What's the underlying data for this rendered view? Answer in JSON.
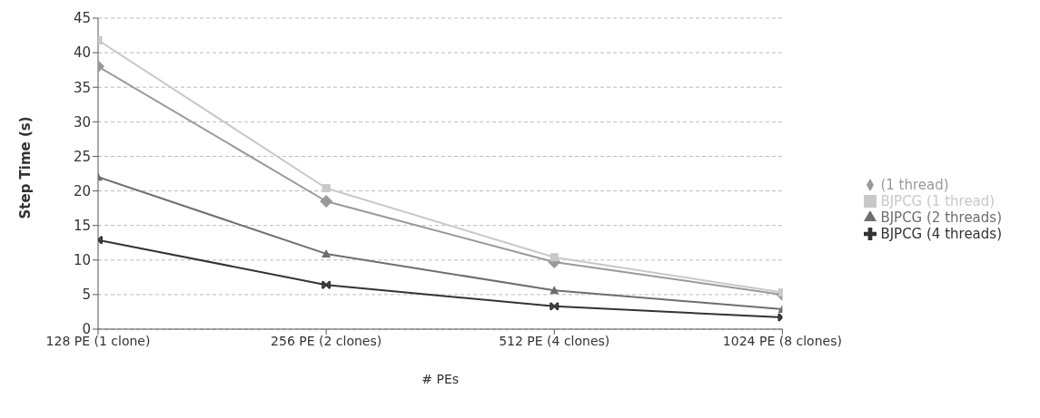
{
  "chart_data": {
    "type": "line",
    "xlabel": "# PEs",
    "ylabel": "Step Time (s)",
    "categories": [
      "128 PE (1 clone)",
      "256 PE (2 clones)",
      "512 PE (4 clones)",
      "1024 PE (8 clones)"
    ],
    "series": [
      {
        "name": "(1 thread)",
        "color": "#999999",
        "marker": "diamond",
        "values": [
          38,
          18.5,
          9.7,
          5
        ]
      },
      {
        "name": "BJPCG (1 thread)",
        "color": "#c8c8c8",
        "marker": "square",
        "values": [
          41.8,
          20.4,
          10.4,
          5.3
        ]
      },
      {
        "name": "BJPCG (2 threads)",
        "color": "#6e6e6e",
        "marker": "triangle",
        "values": [
          22,
          10.9,
          5.6,
          2.9
        ]
      },
      {
        "name": "BJPCG (4 threads)",
        "color": "#333333",
        "marker": "cross",
        "values": [
          12.9,
          6.4,
          3.3,
          1.7
        ]
      }
    ],
    "ylim": [
      0,
      45
    ],
    "yticks": [
      0,
      5,
      10,
      15,
      20,
      25,
      30,
      35,
      40,
      45
    ],
    "grid": "y",
    "legend": "right",
    "line_style": "solid"
  }
}
